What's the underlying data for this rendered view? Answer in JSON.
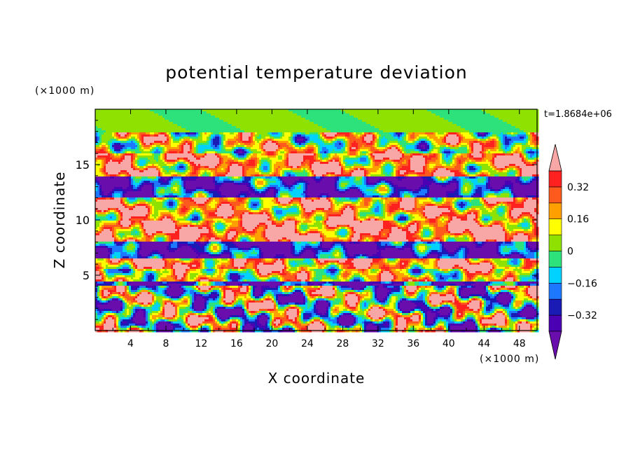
{
  "chart_data": {
    "type": "heatmap",
    "title": "potential temperature deviation",
    "xlabel": "X coordinate",
    "ylabel": "Z coordinate",
    "x_unit": "(×1000 m)",
    "y_unit": "(×1000 m)",
    "time_label": "t=1.8684e+06",
    "xlim": [
      0,
      50
    ],
    "ylim": [
      0,
      20
    ],
    "x_ticks": [
      4,
      8,
      12,
      16,
      20,
      24,
      28,
      32,
      36,
      40,
      44,
      48
    ],
    "y_ticks": [
      5,
      10,
      15
    ],
    "colorbar": {
      "levels": [
        -0.4,
        -0.32,
        -0.24,
        -0.16,
        -0.08,
        0,
        0.08,
        0.16,
        0.24,
        0.32,
        0.4
      ],
      "tick_labels": [
        "0.32",
        "0.16",
        "0",
        "−0.16",
        "−0.32"
      ],
      "tick_values": [
        0.32,
        0.16,
        0,
        -0.16,
        -0.32
      ],
      "colors": [
        "#6a0dad",
        "#4b00b4",
        "#1a1ab4",
        "#1e78ff",
        "#00d2ff",
        "#2de27a",
        "#8ee100",
        "#ffff00",
        "#ffa000",
        "#ff5a1e",
        "#ff2020",
        "#f8a6a6"
      ],
      "extend": "both"
    },
    "field_bands": [
      {
        "z_range": [
          18.0,
          20.0
        ],
        "mean": 0.02
      },
      {
        "z_range": [
          16.0,
          18.0
        ],
        "mean": 0.1
      },
      {
        "z_range": [
          14.0,
          16.0
        ],
        "mean": 0.25
      },
      {
        "z_range": [
          12.0,
          14.0
        ],
        "mean": -0.3
      },
      {
        "z_range": [
          10.0,
          12.0
        ],
        "mean": 0.22
      },
      {
        "z_range": [
          8.0,
          10.0
        ],
        "mean": 0.35
      },
      {
        "z_range": [
          6.5,
          8.0
        ],
        "mean": -0.35
      },
      {
        "z_range": [
          5.5,
          6.5
        ],
        "mean": 0.28
      },
      {
        "z_range": [
          4.5,
          5.5
        ],
        "mean": 0.12
      },
      {
        "z_range": [
          4.0,
          4.5
        ],
        "mean": -0.36
      },
      {
        "z_range": [
          0.0,
          4.0
        ],
        "mean": 0.0
      }
    ]
  }
}
